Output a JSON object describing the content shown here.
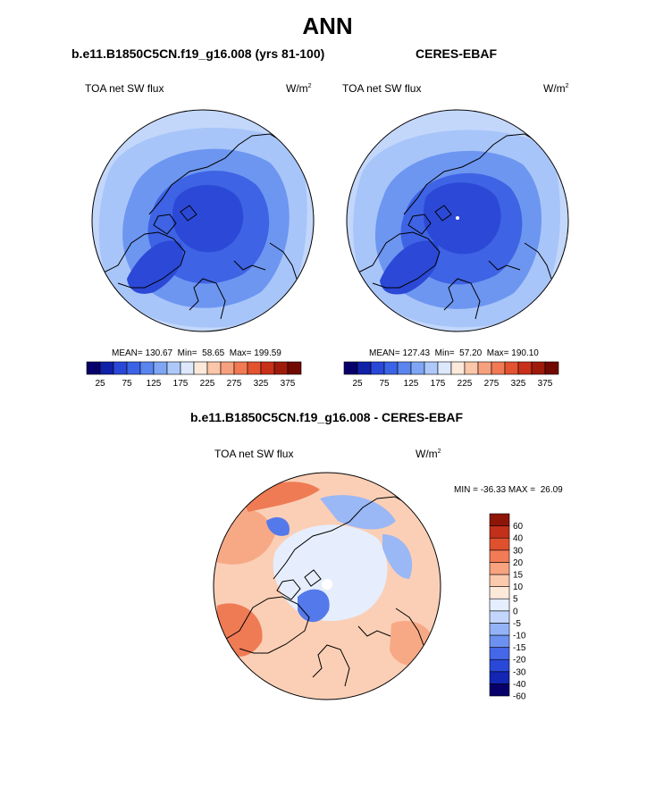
{
  "title": "ANN",
  "panel_left": {
    "case": "b.e11.B1850C5CN.f19_g16.008 (yrs 81-100)",
    "variable": "TOA net SW flux",
    "units_base": "W/m",
    "units_exp": "2",
    "stats": "MEAN= 130.67  Min=  58.65  Max= 199.59"
  },
  "panel_right": {
    "case": "CERES-EBAF",
    "variable": "TOA net SW flux",
    "units_base": "W/m",
    "units_exp": "2",
    "stats": "MEAN= 127.43  Min=  57.20  Max= 190.10"
  },
  "panel_diff": {
    "case": "b.e11.B1850C5CN.f19_g16.008 - CERES-EBAF",
    "variable": "TOA net SW flux",
    "units_base": "W/m",
    "units_exp": "2",
    "stats": "MIN = -36.33 MAX =  26.09"
  },
  "abs_colorbar": {
    "colors": [
      "#08006a",
      "#1021a8",
      "#2a48d8",
      "#3b63e6",
      "#5a85ef",
      "#7ea6f4",
      "#aec8fa",
      "#dde8fd",
      "#fde9d9",
      "#fbc6a9",
      "#f7a07e",
      "#f17954",
      "#e25330",
      "#c8301a",
      "#9e1b0c",
      "#720900"
    ],
    "tick_labels": [
      "25",
      "75",
      "125",
      "175",
      "225",
      "275",
      "325",
      "375"
    ]
  },
  "diff_colorbar": {
    "colors": [
      "#08006a",
      "#1326b4",
      "#2a48d8",
      "#4468e8",
      "#6c91f0",
      "#94b3f6",
      "#c2d6fb",
      "#e5eefe",
      "#fde9da",
      "#fbc9ad",
      "#f7a37f",
      "#f07b55",
      "#df512e",
      "#c2301b",
      "#8e1608"
    ],
    "tick_labels": [
      "60",
      "40",
      "30",
      "20",
      "15",
      "10",
      "5",
      "0",
      "-5",
      "-10",
      "-15",
      "-20",
      "-30",
      "-40",
      "-60"
    ]
  },
  "map_colors": {
    "abs_ocean": "#a8c5f9",
    "abs_outer": "#c3d7fb",
    "abs_mid": "#6d96f1",
    "abs_deep": "#3e63e4",
    "abs_core": "#2b49d6",
    "diff_land": "#f7a986",
    "diff_ocean": "#fbcfb6",
    "diff_neutral": "#e6eefe",
    "diff_blue": "#9ab7f6",
    "diff_deepblue": "#5479ea",
    "diff_red": "#ef7b55"
  }
}
